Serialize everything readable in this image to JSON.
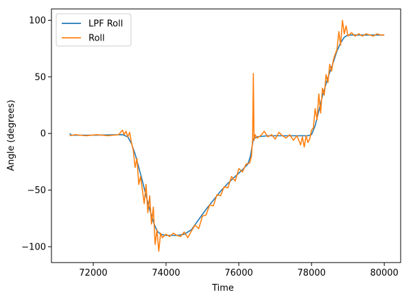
{
  "chart_data": {
    "type": "line",
    "title": "",
    "xlabel": "Time",
    "ylabel": "Angle (degrees)",
    "xlim": [
      70850,
      80450
    ],
    "ylim": [
      -114,
      110
    ],
    "xticks": [
      72000,
      74000,
      76000,
      78000,
      80000
    ],
    "xtick_labels": [
      "72000",
      "74000",
      "76000",
      "78000",
      "80000"
    ],
    "yticks": [
      -100,
      -50,
      0,
      50,
      100
    ],
    "ytick_labels": [
      "−100",
      "−50",
      "0",
      "50",
      "100"
    ],
    "grid": false,
    "legend_position": "top-left",
    "series": [
      {
        "name": "LPF Roll",
        "color": "#1f77b4",
        "x": [
          71350,
          71400,
          72000,
          72500,
          72800,
          72950,
          73050,
          73150,
          73250,
          73350,
          73450,
          73550,
          73650,
          73750,
          73850,
          74000,
          74300,
          74500,
          74700,
          74900,
          75100,
          75300,
          75500,
          75700,
          75900,
          76100,
          76250,
          76320,
          76400,
          76500,
          76800,
          77100,
          77400,
          77700,
          77800,
          77900,
          78000,
          78100,
          78200,
          78300,
          78400,
          78500,
          78600,
          78700,
          78800,
          78900,
          79000,
          79300,
          79600,
          80000
        ],
        "y": [
          0,
          -1.5,
          -1.5,
          -1.2,
          -1,
          -3,
          -9,
          -18,
          -30,
          -42,
          -55,
          -67,
          -78,
          -86,
          -89,
          -90,
          -90,
          -89,
          -85,
          -76,
          -67,
          -59,
          -51,
          -44,
          -38,
          -32,
          -27,
          -20,
          -5,
          -3,
          -2,
          -2,
          -2,
          -2,
          -2,
          -2,
          -1,
          7,
          20,
          33,
          44,
          54,
          63,
          73,
          80,
          85,
          87,
          87,
          87,
          87
        ]
      },
      {
        "name": "Roll",
        "color": "#ff7f0e",
        "x": [
          71350,
          71500,
          71800,
          72100,
          72400,
          72700,
          72800,
          72850,
          72900,
          72950,
          73000,
          73050,
          73100,
          73150,
          73200,
          73250,
          73300,
          73350,
          73400,
          73450,
          73500,
          73550,
          73600,
          73650,
          73700,
          73750,
          73800,
          73850,
          73900,
          74000,
          74100,
          74200,
          74300,
          74400,
          74500,
          74600,
          74700,
          74800,
          74900,
          75000,
          75100,
          75200,
          75300,
          75400,
          75500,
          75600,
          75700,
          75800,
          75900,
          76000,
          76100,
          76200,
          76300,
          76350,
          76380,
          76400,
          76420,
          76450,
          76500,
          76600,
          76700,
          76800,
          76900,
          77000,
          77100,
          77200,
          77300,
          77400,
          77500,
          77600,
          77700,
          77750,
          77800,
          77850,
          77900,
          77950,
          78000,
          78050,
          78100,
          78150,
          78200,
          78250,
          78300,
          78350,
          78400,
          78450,
          78500,
          78550,
          78600,
          78650,
          78700,
          78750,
          78800,
          78850,
          78900,
          78950,
          79000,
          79100,
          79200,
          79300,
          79400,
          79500,
          79600,
          79700,
          79800,
          79900,
          80000
        ],
        "y": [
          -2,
          -1,
          -2,
          -1,
          -2,
          -1,
          3,
          -1,
          2,
          -3,
          1,
          -8,
          -15,
          -30,
          -22,
          -45,
          -38,
          -50,
          -62,
          -45,
          -70,
          -55,
          -80,
          -65,
          -98,
          -85,
          -104,
          -88,
          -92,
          -89,
          -91,
          -88,
          -90,
          -91,
          -87,
          -92,
          -86,
          -81,
          -84,
          -73,
          -72,
          -63,
          -64,
          -54,
          -55,
          -47,
          -48,
          -38,
          -42,
          -31,
          -34,
          -27,
          -26,
          -20,
          -5,
          53,
          -6,
          -1,
          -4,
          -2,
          2,
          -3,
          -1,
          -5,
          1,
          -2,
          -4,
          -1,
          -6,
          -2,
          -10,
          -3,
          -12,
          -2,
          -8,
          -5,
          3,
          5,
          22,
          12,
          35,
          18,
          40,
          34,
          52,
          45,
          61,
          55,
          65,
          70,
          74,
          90,
          78,
          100,
          88,
          95,
          86,
          89,
          86,
          88,
          86,
          88,
          87,
          86,
          88,
          87,
          87
        ]
      }
    ]
  }
}
